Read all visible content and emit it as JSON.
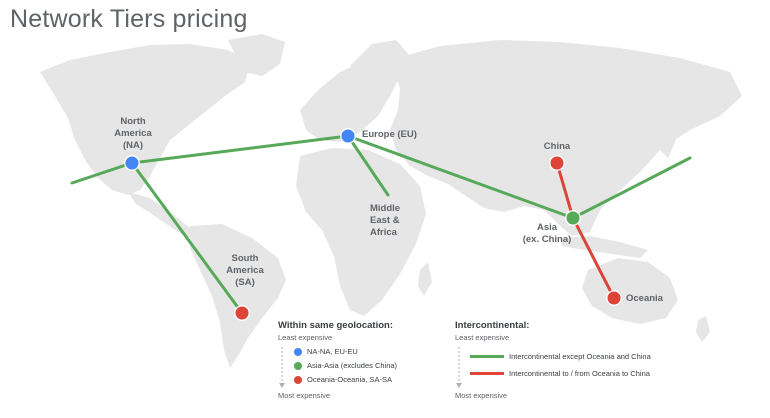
{
  "title": "Network Tiers pricing",
  "colors": {
    "blue": "#4285f4",
    "green": "#57a95a",
    "red": "#db4437",
    "land": "#e6e6e6"
  },
  "regions": {
    "na": "North\nAmerica\n(NA)",
    "eu": "Europe (EU)",
    "mea": "Middle\nEast &\nAfrica",
    "sa": "South\nAmerica\n(SA)",
    "china": "China",
    "asia": "Asia\n(ex. China)",
    "oceania": "Oceania"
  },
  "legend_geo": {
    "title": "Within same geolocation:",
    "least": "Least expensive",
    "most": "Most expensive",
    "items": [
      {
        "label": "NA-NA, EU-EU",
        "color": "#4285f4"
      },
      {
        "label": "Asia-Asia (excludes China)",
        "color": "#57a95a"
      },
      {
        "label": "Oceania-Oceania, SA-SA",
        "color": "#db4437"
      }
    ]
  },
  "legend_inter": {
    "title": "Intercontinental:",
    "least": "Least expensive",
    "most": "Most expensive",
    "items": [
      {
        "label": "Intercontinental except Oceania and China",
        "color": "#57a95a"
      },
      {
        "label": "Intercontinental to / from Oceania to China",
        "color": "#db4437"
      }
    ]
  }
}
